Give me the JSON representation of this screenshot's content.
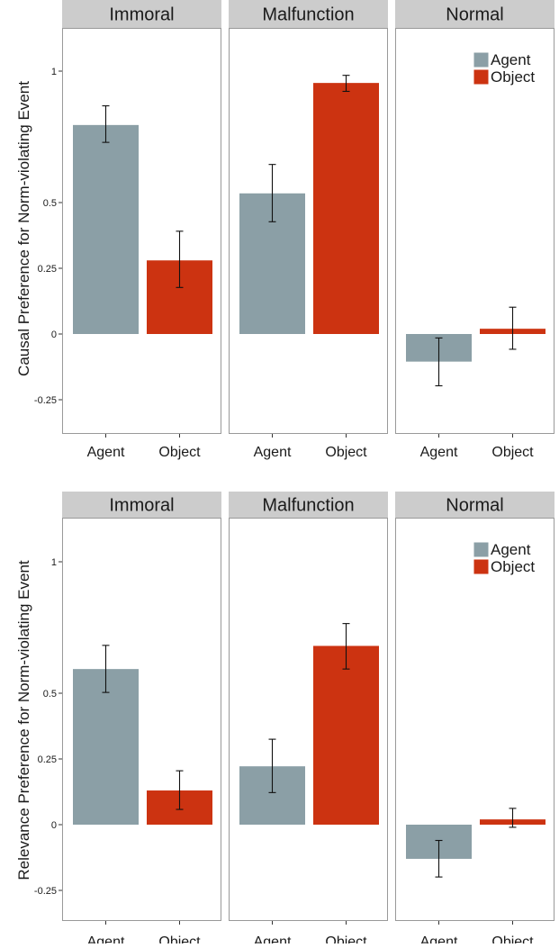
{
  "chart_data": [
    {
      "type": "bar",
      "ylabel": "Causal Preference for Norm-violating Event",
      "categories": [
        "Agent",
        "Object"
      ],
      "facets": [
        "Immoral",
        "Malfunction",
        "Normal"
      ],
      "yticks": [
        {
          "value": -0.25,
          "label": "-0.25"
        },
        {
          "value": 0,
          "label": "0"
        },
        {
          "value": 0.25,
          "label": "0.25"
        },
        {
          "value": 0.5,
          "label": "0.5"
        },
        {
          "value": 1,
          "label": "1"
        }
      ],
      "ylim": [
        -0.37,
        1.17
      ],
      "legend": {
        "position": "top-right (Normal panel)",
        "entries": [
          "Agent",
          "Object"
        ]
      },
      "colors": {
        "Agent": "#8b9fa6",
        "Object": "#cc3311"
      },
      "values": {
        "Immoral": {
          "Agent": 0.795,
          "Object": 0.28
        },
        "Malfunction": {
          "Agent": 0.535,
          "Object": 0.955
        },
        "Normal": {
          "Agent": -0.105,
          "Object": 0.02
        }
      },
      "errors": {
        "Immoral": {
          "Agent": [
            0.729,
            0.868
          ],
          "Object": [
            0.177,
            0.391
          ]
        },
        "Malfunction": {
          "Agent": [
            0.427,
            0.645
          ],
          "Object": [
            0.923,
            0.984
          ]
        },
        "Normal": {
          "Agent": [
            -0.197,
            -0.015
          ],
          "Object": [
            -0.058,
            0.102
          ]
        }
      }
    },
    {
      "type": "bar",
      "ylabel": "Relevance Preference for Norm-violating Event",
      "categories": [
        "Agent",
        "Object"
      ],
      "facets": [
        "Immoral",
        "Malfunction",
        "Normal"
      ],
      "yticks": [
        {
          "value": -0.25,
          "label": "-0.25"
        },
        {
          "value": 0,
          "label": "0"
        },
        {
          "value": 0.25,
          "label": "0.25"
        },
        {
          "value": 0.5,
          "label": "0.5"
        },
        {
          "value": 1,
          "label": "1"
        }
      ],
      "ylim": [
        -0.37,
        1.17
      ],
      "legend": {
        "position": "top-right (Normal panel)",
        "entries": [
          "Agent",
          "Object"
        ]
      },
      "colors": {
        "Agent": "#8b9fa6",
        "Object": "#cc3311"
      },
      "values": {
        "Immoral": {
          "Agent": 0.592,
          "Object": 0.13
        },
        "Malfunction": {
          "Agent": 0.222,
          "Object": 0.68
        },
        "Normal": {
          "Agent": -0.13,
          "Object": 0.02
        }
      },
      "errors": {
        "Immoral": {
          "Agent": [
            0.503,
            0.682
          ],
          "Object": [
            0.058,
            0.205
          ]
        },
        "Malfunction": {
          "Agent": [
            0.122,
            0.325
          ],
          "Object": [
            0.592,
            0.765
          ]
        },
        "Normal": {
          "Agent": [
            -0.199,
            -0.06
          ],
          "Object": [
            -0.01,
            0.062
          ]
        }
      }
    }
  ]
}
